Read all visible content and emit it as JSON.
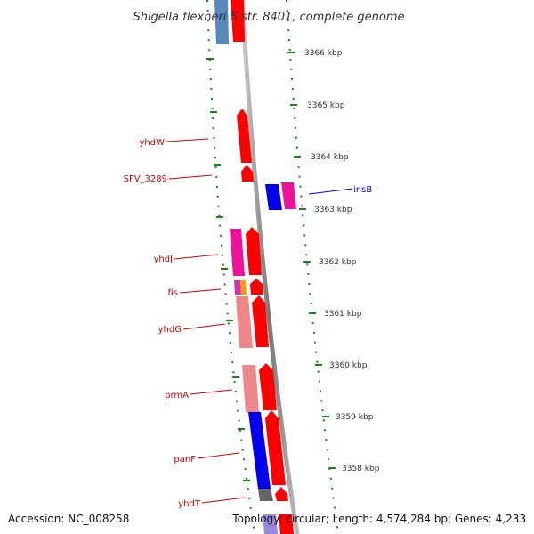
{
  "title": "Shigella flexneri 5 str. 8401, complete genome",
  "footer": {
    "accession": "Accession: NC_008258",
    "topology": "Topology: circular; Length: 4,574,284 bp; Genes: 4,233"
  },
  "kbp_labels": [
    "3366 kbp",
    "3365 kbp",
    "3364 kbp",
    "3363 kbp",
    "3362 kbp",
    "3361 kbp",
    "3360 kbp",
    "3359 kbp",
    "3358 kbp"
  ],
  "gene_labels": {
    "yhdW": "yhdW",
    "SFV_3289": "SFV_3289",
    "insB": "insB",
    "yhdJ": "yhdJ",
    "fis": "fis",
    "yhdG": "yhdG",
    "prmA": "prmA",
    "panF": "panF",
    "yhdT": "yhdT"
  },
  "colors": {
    "gene_label": "#cc0000",
    "insB_label": "#0000cc",
    "scale": "#118811",
    "backbone": "#888888",
    "red": "#ff0000",
    "pink": "#ee1199",
    "salmon": "#ee8888",
    "blue": "#0000ee",
    "steelblue": "#5588bb",
    "orange": "#ff9900",
    "gray": "#666666"
  }
}
